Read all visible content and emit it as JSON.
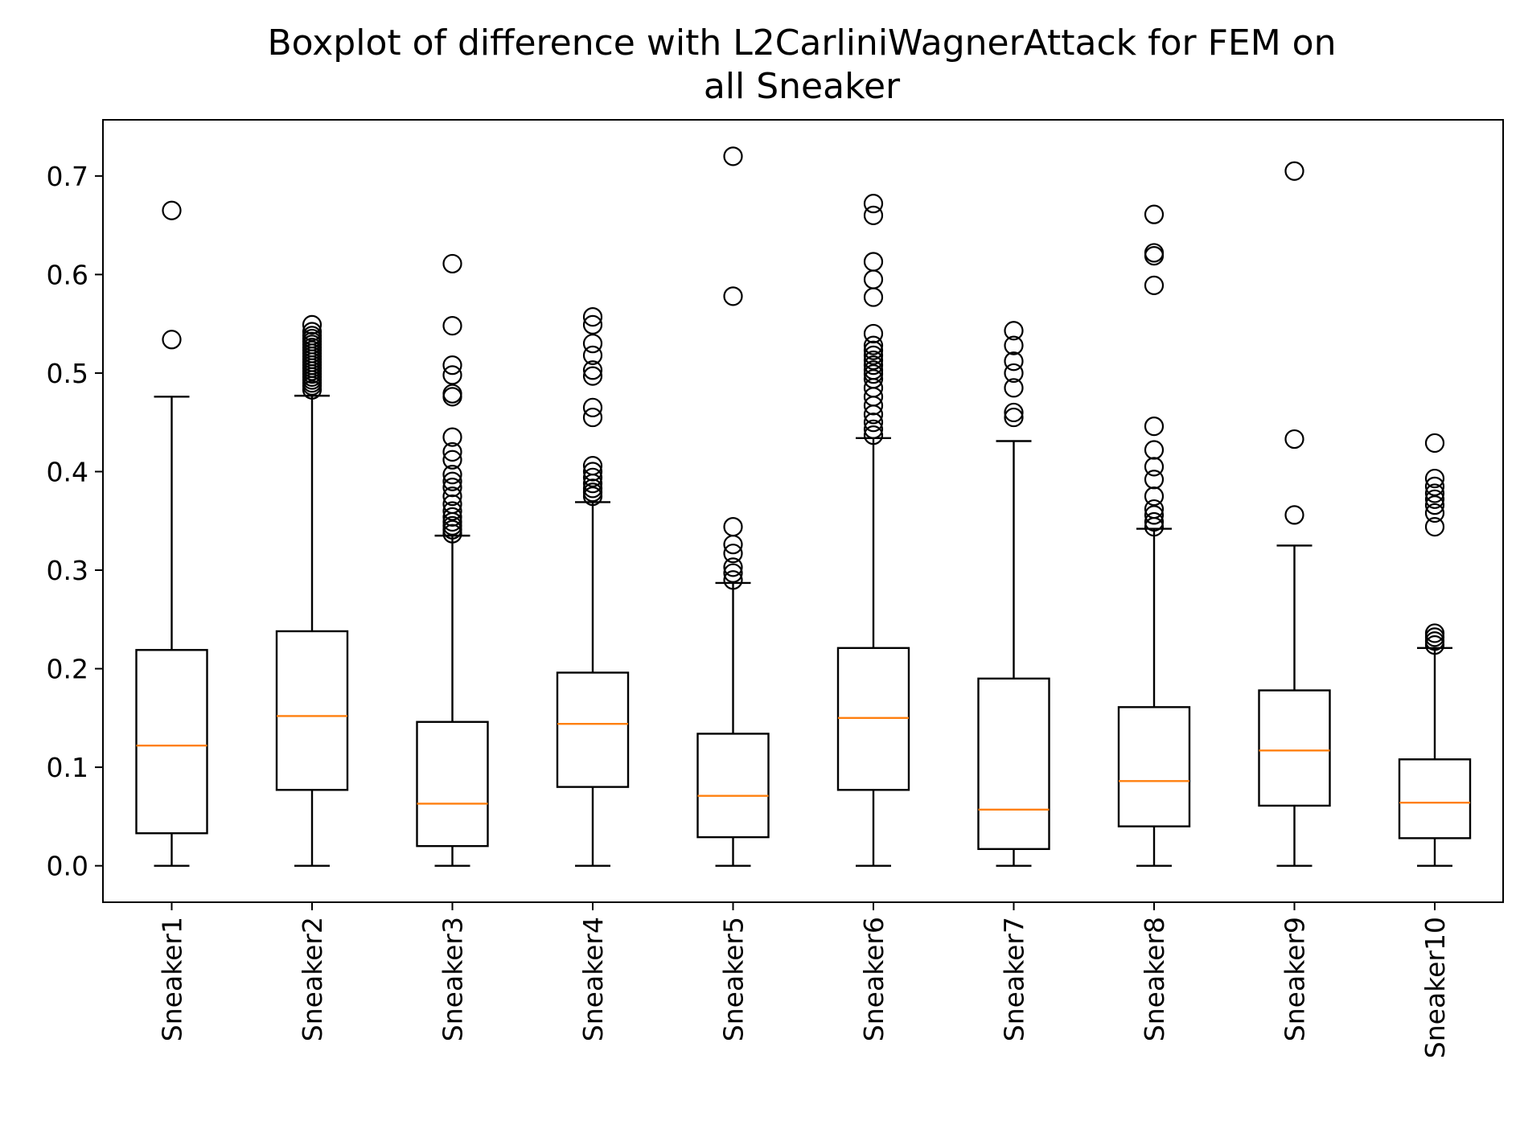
{
  "chart_data": {
    "type": "boxplot",
    "title": "Boxplot of difference with L2CarliniWagnerAttack for FEM on all Sneaker",
    "title_lines": [
      "Boxplot of difference with L2CarliniWagnerAttack for FEM on",
      "all Sneaker"
    ],
    "xlabel": "",
    "ylabel": "",
    "ylim": [
      -0.037,
      0.757
    ],
    "yticks": [
      0.0,
      0.1,
      0.2,
      0.3,
      0.4,
      0.5,
      0.6,
      0.7
    ],
    "ytick_labels": [
      "0.0",
      "0.1",
      "0.2",
      "0.3",
      "0.4",
      "0.5",
      "0.6",
      "0.7"
    ],
    "grid": false,
    "categories": [
      "Sneaker1",
      "Sneaker2",
      "Sneaker3",
      "Sneaker4",
      "Sneaker5",
      "Sneaker6",
      "Sneaker7",
      "Sneaker8",
      "Sneaker9",
      "Sneaker10"
    ],
    "colors": {
      "box": "#000000",
      "median": "#ff7f0e",
      "flier": "#000000",
      "background": "#ffffff"
    },
    "boxes": [
      {
        "label": "Sneaker1",
        "whislo": 0.0,
        "q1": 0.033,
        "med": 0.122,
        "q3": 0.219,
        "whishi": 0.476,
        "fliers": [
          0.534,
          0.665
        ]
      },
      {
        "label": "Sneaker2",
        "whislo": 0.0,
        "q1": 0.077,
        "med": 0.152,
        "q3": 0.238,
        "whishi": 0.477,
        "fliers": [
          0.483,
          0.487,
          0.49,
          0.493,
          0.496,
          0.499,
          0.502,
          0.505,
          0.508,
          0.511,
          0.514,
          0.517,
          0.52,
          0.523,
          0.526,
          0.529,
          0.532,
          0.535,
          0.538,
          0.542,
          0.549
        ]
      },
      {
        "label": "Sneaker3",
        "whislo": 0.0,
        "q1": 0.02,
        "med": 0.063,
        "q3": 0.146,
        "whishi": 0.335,
        "fliers": [
          0.337,
          0.341,
          0.345,
          0.349,
          0.354,
          0.36,
          0.367,
          0.375,
          0.384,
          0.39,
          0.397,
          0.412,
          0.42,
          0.435,
          0.476,
          0.479,
          0.498,
          0.508,
          0.548,
          0.611
        ]
      },
      {
        "label": "Sneaker4",
        "whislo": 0.0,
        "q1": 0.08,
        "med": 0.144,
        "q3": 0.196,
        "whishi": 0.369,
        "fliers": [
          0.375,
          0.379,
          0.383,
          0.388,
          0.394,
          0.4,
          0.406,
          0.455,
          0.465,
          0.497,
          0.503,
          0.518,
          0.53,
          0.549,
          0.557
        ]
      },
      {
        "label": "Sneaker5",
        "whislo": 0.0,
        "q1": 0.029,
        "med": 0.071,
        "q3": 0.134,
        "whishi": 0.287,
        "fliers": [
          0.29,
          0.297,
          0.303,
          0.317,
          0.326,
          0.344,
          0.578,
          0.72
        ]
      },
      {
        "label": "Sneaker6",
        "whislo": 0.0,
        "q1": 0.077,
        "med": 0.15,
        "q3": 0.221,
        "whishi": 0.434,
        "fliers": [
          0.437,
          0.443,
          0.45,
          0.458,
          0.467,
          0.476,
          0.485,
          0.494,
          0.499,
          0.503,
          0.508,
          0.513,
          0.518,
          0.523,
          0.528,
          0.54,
          0.577,
          0.595,
          0.613,
          0.66,
          0.672
        ]
      },
      {
        "label": "Sneaker7",
        "whislo": 0.0,
        "q1": 0.017,
        "med": 0.057,
        "q3": 0.19,
        "whishi": 0.431,
        "fliers": [
          0.455,
          0.46,
          0.485,
          0.5,
          0.512,
          0.528,
          0.543
        ]
      },
      {
        "label": "Sneaker8",
        "whislo": 0.0,
        "q1": 0.04,
        "med": 0.086,
        "q3": 0.161,
        "whishi": 0.342,
        "fliers": [
          0.344,
          0.349,
          0.356,
          0.362,
          0.375,
          0.392,
          0.405,
          0.422,
          0.446,
          0.589,
          0.619,
          0.622,
          0.661
        ]
      },
      {
        "label": "Sneaker9",
        "whislo": 0.0,
        "q1": 0.061,
        "med": 0.117,
        "q3": 0.178,
        "whishi": 0.325,
        "fliers": [
          0.356,
          0.433,
          0.705
        ]
      },
      {
        "label": "Sneaker10",
        "whislo": 0.0,
        "q1": 0.028,
        "med": 0.064,
        "q3": 0.108,
        "whishi": 0.221,
        "fliers": [
          0.224,
          0.228,
          0.232,
          0.236,
          0.344,
          0.358,
          0.366,
          0.372,
          0.378,
          0.385,
          0.393,
          0.429
        ]
      }
    ]
  }
}
